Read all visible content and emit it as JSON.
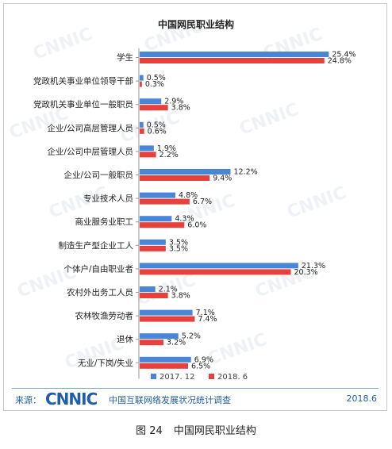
{
  "watermark": "CNNIC",
  "footer": {
    "source_label": "来源：",
    "logo_text": "CNNIC",
    "survey_text": "中国互联网络发展状况统计调查",
    "date": "2018.6"
  },
  "caption": {
    "figure_number": "图 24",
    "figure_title": "中国网民职业结构"
  },
  "colors": {
    "series1": "#4a86d8",
    "series2": "#e8403a"
  },
  "chart_data": {
    "type": "bar",
    "orientation": "horizontal",
    "title": "中国网民职业结构",
    "categories": [
      "学生",
      "党政机关事业单位领导干部",
      "党政机关事业单位一般职员",
      "企业/公司高层管理人员",
      "企业/公司中层管理人员",
      "企业/公司一般职员",
      "专业技术人员",
      "商业服务业职工",
      "制造生产型企业工人",
      "个体户/自由职业者",
      "农村外出务工人员",
      "农林牧渔劳动者",
      "退休",
      "无业/下岗/失业"
    ],
    "series": [
      {
        "name": "2017. 12",
        "values": [
          25.4,
          0.5,
          2.9,
          0.5,
          1.9,
          12.2,
          4.8,
          4.3,
          3.5,
          21.3,
          2.1,
          7.1,
          5.2,
          6.9
        ]
      },
      {
        "name": "2018. 6",
        "values": [
          24.8,
          0.3,
          3.8,
          0.6,
          2.2,
          9.4,
          6.7,
          6.0,
          3.5,
          20.3,
          3.8,
          7.4,
          3.2,
          6.5
        ]
      }
    ],
    "value_suffix": "%",
    "xlim": [
      0,
      26
    ],
    "legend_position": "bottom",
    "grid": false
  }
}
